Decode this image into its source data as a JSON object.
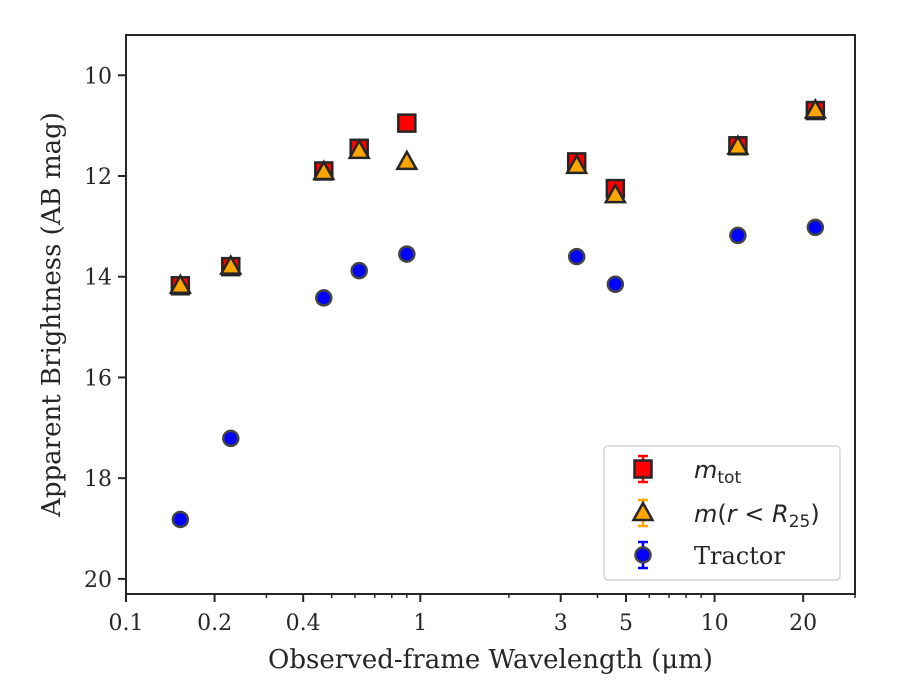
{
  "chart_data": {
    "type": "scatter",
    "xlabel": "Observed-frame Wavelength (μm)",
    "ylabel": "Apparent Brightness (AB mag)",
    "xscale": "log",
    "xlim": [
      0.1,
      30
    ],
    "ylim": [
      20.3,
      9.2
    ],
    "y_inverted": true,
    "xticks": [
      0.1,
      0.2,
      0.4,
      1,
      3,
      5,
      10,
      20
    ],
    "xtick_labels": [
      "0.1",
      "0.2",
      "0.4",
      "1",
      "3",
      "5",
      "10",
      "20"
    ],
    "yticks": [
      10,
      12,
      14,
      16,
      18,
      20
    ],
    "ytick_labels": [
      "10",
      "12",
      "14",
      "16",
      "18",
      "20"
    ],
    "grid": false,
    "legend_position": "lower-right",
    "series": [
      {
        "name": "m_tot",
        "marker": "square",
        "color": "#ff0000",
        "points": [
          {
            "x": 0.153,
            "y": 14.18
          },
          {
            "x": 0.227,
            "y": 13.8
          },
          {
            "x": 0.47,
            "y": 11.9
          },
          {
            "x": 0.62,
            "y": 11.45
          },
          {
            "x": 0.9,
            "y": 10.95
          },
          {
            "x": 3.4,
            "y": 11.72
          },
          {
            "x": 4.6,
            "y": 12.25
          },
          {
            "x": 12.0,
            "y": 11.4
          },
          {
            "x": 22.0,
            "y": 10.7
          }
        ]
      },
      {
        "name": "m(r<R25)",
        "marker": "triangle",
        "color": "#ffa500",
        "points": [
          {
            "x": 0.153,
            "y": 14.18
          },
          {
            "x": 0.227,
            "y": 13.8
          },
          {
            "x": 0.47,
            "y": 11.92
          },
          {
            "x": 0.62,
            "y": 11.5
          },
          {
            "x": 0.9,
            "y": 11.72
          },
          {
            "x": 3.4,
            "y": 11.8
          },
          {
            "x": 4.6,
            "y": 12.38
          },
          {
            "x": 12.0,
            "y": 11.42
          },
          {
            "x": 22.0,
            "y": 10.7
          }
        ]
      },
      {
        "name": "Tractor",
        "marker": "circle",
        "color": "#0000ff",
        "points": [
          {
            "x": 0.153,
            "y": 18.82
          },
          {
            "x": 0.227,
            "y": 17.21
          },
          {
            "x": 0.47,
            "y": 14.42
          },
          {
            "x": 0.62,
            "y": 13.88
          },
          {
            "x": 0.9,
            "y": 13.55
          },
          {
            "x": 3.4,
            "y": 13.6
          },
          {
            "x": 4.6,
            "y": 14.15
          },
          {
            "x": 12.0,
            "y": 13.18
          },
          {
            "x": 22.0,
            "y": 13.02
          }
        ]
      }
    ]
  }
}
